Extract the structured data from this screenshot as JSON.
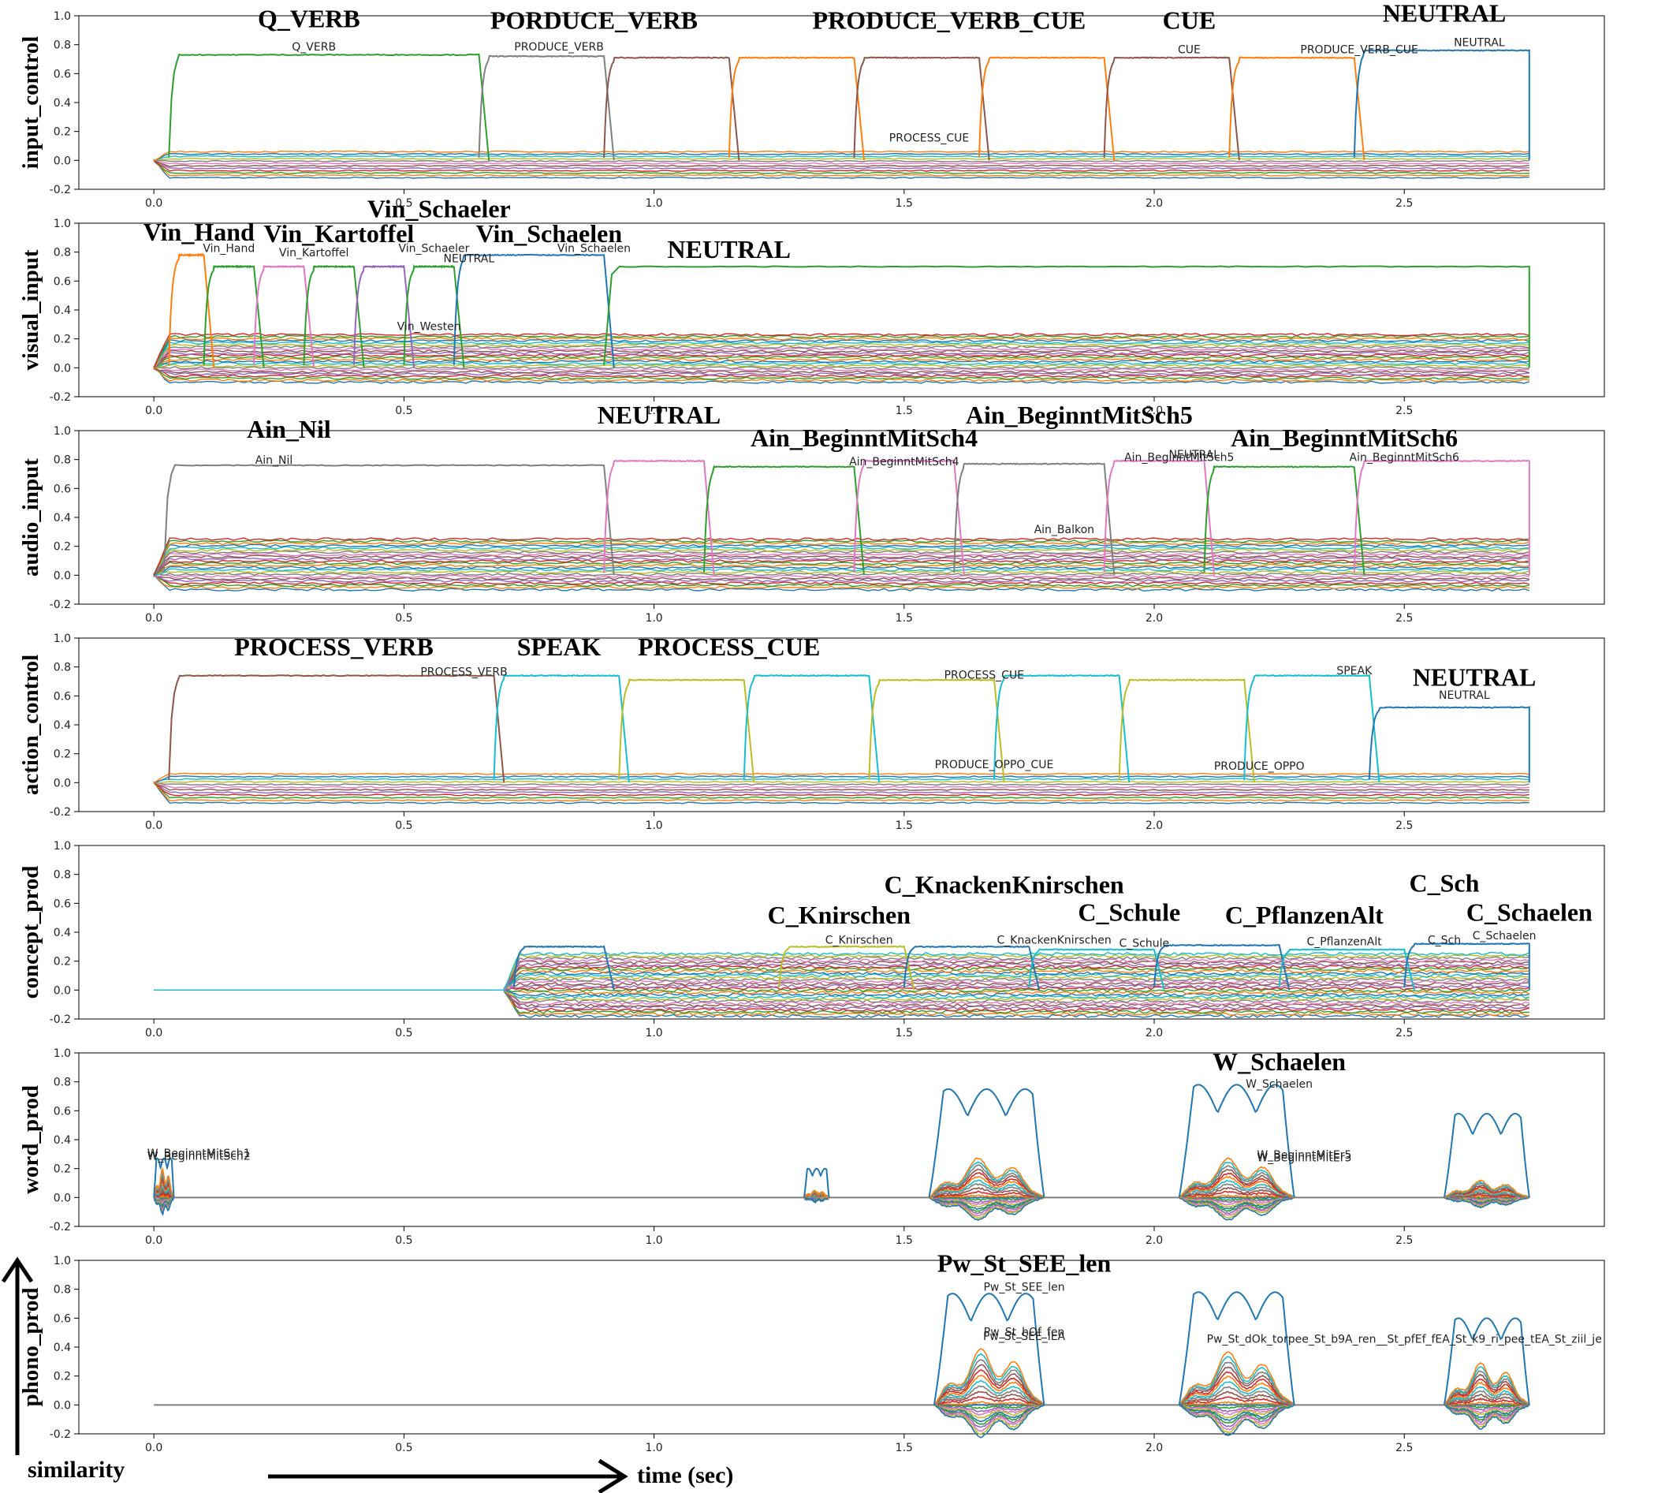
{
  "chart_data": [
    {
      "type": "line",
      "ylabel": "input_control",
      "xlim": [
        -0.15,
        2.9
      ],
      "ylim": [
        -0.2,
        1.0
      ],
      "xticks": [
        "0.0",
        "0.5",
        "1.0",
        "1.5",
        "2.0",
        "2.5"
      ],
      "yticks": [
        "-0.2",
        "0.0",
        "0.2",
        "0.4",
        "0.6",
        "0.8",
        "1.0"
      ],
      "annotations_big": [
        {
          "text": "Q_VERB",
          "x": 0.31,
          "y": 0.92
        },
        {
          "text": "PORDUCE_VERB",
          "x": 0.88,
          "y": 0.91
        },
        {
          "text": "PRODUCE_VERB_CUE",
          "x": 1.59,
          "y": 0.91
        },
        {
          "text": "CUE",
          "x": 2.07,
          "y": 0.91
        },
        {
          "text": "NEUTRAL",
          "x": 2.58,
          "y": 0.96
        }
      ],
      "annotations_small": [
        {
          "text": "Q_VERB",
          "x": 0.32,
          "y": 0.76
        },
        {
          "text": "PRODUCE_VERB",
          "x": 0.81,
          "y": 0.76
        },
        {
          "text": "CUE",
          "x": 2.07,
          "y": 0.74
        },
        {
          "text": "PRODUCE_VERB_CUE",
          "x": 2.41,
          "y": 0.74
        },
        {
          "text": "NEUTRAL",
          "x": 2.65,
          "y": 0.79
        },
        {
          "text": "PROCESS_CUE",
          "x": 1.55,
          "y": 0.13
        }
      ],
      "segments": [
        {
          "t0": 0.03,
          "t1": 0.65,
          "level": 0.73,
          "color": "#2ca02c"
        },
        {
          "t0": 0.65,
          "t1": 0.9,
          "level": 0.72,
          "color": "#7f7f7f"
        },
        {
          "t0": 0.9,
          "t1": 1.15,
          "level": 0.71,
          "color": "#8c564b"
        },
        {
          "t0": 1.15,
          "t1": 1.4,
          "level": 0.71,
          "color": "#ff7f0e"
        },
        {
          "t0": 1.4,
          "t1": 1.65,
          "level": 0.71,
          "color": "#8c564b"
        },
        {
          "t0": 1.65,
          "t1": 1.9,
          "level": 0.71,
          "color": "#ff7f0e"
        },
        {
          "t0": 1.9,
          "t1": 2.15,
          "level": 0.71,
          "color": "#8c564b"
        },
        {
          "t0": 2.15,
          "t1": 2.4,
          "level": 0.71,
          "color": "#ff7f0e"
        },
        {
          "t0": 2.4,
          "t1": 2.75,
          "level": 0.76,
          "color": "#1f77b4"
        }
      ],
      "band": {
        "lo": -0.12,
        "hi": 0.06,
        "lines": 12
      }
    },
    {
      "type": "line",
      "ylabel": "visual_input",
      "xlim": [
        -0.15,
        2.9
      ],
      "ylim": [
        -0.2,
        1.0
      ],
      "xticks": [
        "0.0",
        "0.5",
        "1.0",
        "1.5",
        "2.0",
        "2.5"
      ],
      "yticks": [
        "-0.2",
        "0.0",
        "0.2",
        "0.4",
        "0.6",
        "0.8",
        "1.0"
      ],
      "annotations_big": [
        {
          "text": "Vin_Hand",
          "x": 0.09,
          "y": 0.88
        },
        {
          "text": "Vin_Kartoffel",
          "x": 0.37,
          "y": 0.87
        },
        {
          "text": "Vin_Schaeler",
          "x": 0.57,
          "y": 1.04
        },
        {
          "text": "Vin_Schaelen",
          "x": 0.79,
          "y": 0.87
        },
        {
          "text": "NEUTRAL",
          "x": 1.15,
          "y": 0.76
        }
      ],
      "annotations_small": [
        {
          "text": "Vin_Hand",
          "x": 0.15,
          "y": 0.8
        },
        {
          "text": "Vin_Kartoffel",
          "x": 0.32,
          "y": 0.77
        },
        {
          "text": "Vin_Schaeler",
          "x": 0.56,
          "y": 0.8
        },
        {
          "text": "NEUTRAL",
          "x": 0.63,
          "y": 0.73
        },
        {
          "text": "Vin_Schaelen",
          "x": 0.88,
          "y": 0.8
        },
        {
          "text": "Vin_Westen",
          "x": 0.55,
          "y": 0.26
        }
      ],
      "segments": [
        {
          "t0": 0.03,
          "t1": 0.1,
          "level": 0.78,
          "color": "#ff7f0e"
        },
        {
          "t0": 0.1,
          "t1": 0.2,
          "level": 0.7,
          "color": "#2ca02c"
        },
        {
          "t0": 0.2,
          "t1": 0.3,
          "level": 0.7,
          "color": "#e377c2"
        },
        {
          "t0": 0.3,
          "t1": 0.4,
          "level": 0.7,
          "color": "#2ca02c"
        },
        {
          "t0": 0.4,
          "t1": 0.5,
          "level": 0.7,
          "color": "#9467bd"
        },
        {
          "t0": 0.5,
          "t1": 0.6,
          "level": 0.7,
          "color": "#2ca02c"
        },
        {
          "t0": 0.6,
          "t1": 0.9,
          "level": 0.78,
          "color": "#1f77b4"
        },
        {
          "t0": 0.9,
          "t1": 2.75,
          "level": 0.7,
          "color": "#2ca02c"
        }
      ],
      "band": {
        "lo": -0.1,
        "hi": 0.23,
        "lines": 24
      }
    },
    {
      "type": "line",
      "ylabel": "audio_input",
      "xlim": [
        -0.15,
        2.9
      ],
      "ylim": [
        -0.2,
        1.0
      ],
      "xticks": [
        "0.0",
        "0.5",
        "1.0",
        "1.5",
        "2.0",
        "2.5"
      ],
      "yticks": [
        "-0.2",
        "0.0",
        "0.2",
        "0.4",
        "0.6",
        "0.8",
        "1.0"
      ],
      "annotations_big": [
        {
          "text": "Ain_Nil",
          "x": 0.27,
          "y": 0.95
        },
        {
          "text": "NEUTRAL",
          "x": 1.01,
          "y": 1.05
        },
        {
          "text": "Ain_BeginntMitSch4",
          "x": 1.42,
          "y": 0.89
        },
        {
          "text": "Ain_BeginntMitSch5",
          "x": 1.85,
          "y": 1.05
        },
        {
          "text": "Ain_BeginntMitSch6",
          "x": 2.38,
          "y": 0.89
        }
      ],
      "annotations_small": [
        {
          "text": "Ain_Nil",
          "x": 0.24,
          "y": 0.77
        },
        {
          "text": "Ain_BeginntMitSch4",
          "x": 1.5,
          "y": 0.76
        },
        {
          "text": "Ain_BeginntMitSch5",
          "x": 2.05,
          "y": 0.79
        },
        {
          "text": "NEUTRAL",
          "x": 2.08,
          "y": 0.81
        },
        {
          "text": "Ain_BeginntMitSch6",
          "x": 2.5,
          "y": 0.79
        },
        {
          "text": "Ain_Balkon",
          "x": 1.82,
          "y": 0.29
        }
      ],
      "segments": [
        {
          "t0": 0.02,
          "t1": 0.9,
          "level": 0.76,
          "color": "#7f7f7f"
        },
        {
          "t0": 0.9,
          "t1": 1.1,
          "level": 0.79,
          "color": "#e377c2"
        },
        {
          "t0": 1.1,
          "t1": 1.4,
          "level": 0.75,
          "color": "#2ca02c"
        },
        {
          "t0": 1.4,
          "t1": 1.6,
          "level": 0.79,
          "color": "#e377c2"
        },
        {
          "t0": 1.6,
          "t1": 1.9,
          "level": 0.77,
          "color": "#7f7f7f"
        },
        {
          "t0": 1.9,
          "t1": 2.1,
          "level": 0.79,
          "color": "#e377c2"
        },
        {
          "t0": 2.1,
          "t1": 2.4,
          "level": 0.75,
          "color": "#2ca02c"
        },
        {
          "t0": 2.4,
          "t1": 2.75,
          "level": 0.79,
          "color": "#e377c2"
        }
      ],
      "band": {
        "lo": -0.1,
        "hi": 0.25,
        "lines": 24
      }
    },
    {
      "type": "line",
      "ylabel": "action_control",
      "xlim": [
        -0.15,
        2.9
      ],
      "ylim": [
        -0.2,
        1.0
      ],
      "xticks": [
        "0.0",
        "0.5",
        "1.0",
        "1.5",
        "2.0",
        "2.5"
      ],
      "yticks": [
        "-0.2",
        "0.0",
        "0.2",
        "0.4",
        "0.6",
        "0.8",
        "1.0"
      ],
      "annotations_big": [
        {
          "text": "PROCESS_VERB",
          "x": 0.36,
          "y": 0.88
        },
        {
          "text": "SPEAK",
          "x": 0.81,
          "y": 0.88
        },
        {
          "text": "PROCESS_CUE",
          "x": 1.15,
          "y": 0.88
        },
        {
          "text": "NEUTRAL",
          "x": 2.64,
          "y": 0.67
        }
      ],
      "annotations_small": [
        {
          "text": "PROCESS_VERB",
          "x": 0.62,
          "y": 0.74
        },
        {
          "text": "PROCESS_CUE",
          "x": 1.66,
          "y": 0.72
        },
        {
          "text": "SPEAK",
          "x": 2.4,
          "y": 0.75
        },
        {
          "text": "NEUTRAL",
          "x": 2.62,
          "y": 0.58
        },
        {
          "text": "PRODUCE_OPPO_CUE",
          "x": 1.68,
          "y": 0.1
        },
        {
          "text": "PRODUCE_OPPO",
          "x": 2.21,
          "y": 0.09
        }
      ],
      "segments": [
        {
          "t0": 0.03,
          "t1": 0.68,
          "level": 0.74,
          "color": "#8c564b"
        },
        {
          "t0": 0.68,
          "t1": 0.93,
          "level": 0.74,
          "color": "#17becf"
        },
        {
          "t0": 0.93,
          "t1": 1.18,
          "level": 0.71,
          "color": "#bcbd22"
        },
        {
          "t0": 1.18,
          "t1": 1.43,
          "level": 0.74,
          "color": "#17becf"
        },
        {
          "t0": 1.43,
          "t1": 1.68,
          "level": 0.71,
          "color": "#bcbd22"
        },
        {
          "t0": 1.68,
          "t1": 1.93,
          "level": 0.74,
          "color": "#17becf"
        },
        {
          "t0": 1.93,
          "t1": 2.18,
          "level": 0.71,
          "color": "#bcbd22"
        },
        {
          "t0": 2.18,
          "t1": 2.43,
          "level": 0.74,
          "color": "#17becf"
        },
        {
          "t0": 2.43,
          "t1": 2.75,
          "level": 0.52,
          "color": "#1f77b4"
        }
      ],
      "band": {
        "lo": -0.14,
        "hi": 0.06,
        "lines": 12
      }
    },
    {
      "type": "line",
      "ylabel": "concept_prod",
      "xlim": [
        -0.15,
        2.9
      ],
      "ylim": [
        -0.2,
        1.0
      ],
      "xticks": [
        "0.0",
        "0.5",
        "1.0",
        "1.5",
        "2.0",
        "2.5"
      ],
      "yticks": [
        "-0.2",
        "0.0",
        "0.2",
        "0.4",
        "0.6",
        "0.8",
        "1.0"
      ],
      "annotations_big": [
        {
          "text": "C_KnackenKnirschen",
          "x": 1.7,
          "y": 0.67
        },
        {
          "text": "C_Knirschen",
          "x": 1.37,
          "y": 0.46
        },
        {
          "text": "C_Schule",
          "x": 1.95,
          "y": 0.48
        },
        {
          "text": "C_Sch",
          "x": 2.58,
          "y": 0.68
        },
        {
          "text": "C_PflanzenAlt",
          "x": 2.3,
          "y": 0.46
        },
        {
          "text": "C_Schaelen",
          "x": 2.75,
          "y": 0.48
        }
      ],
      "annotations_small": [
        {
          "text": "C_Knirschen",
          "x": 1.41,
          "y": 0.32
        },
        {
          "text": "C_KnackenKnirschen",
          "x": 1.8,
          "y": 0.32
        },
        {
          "text": "C_Schule",
          "x": 1.98,
          "y": 0.3
        },
        {
          "text": "C_PflanzenAlt",
          "x": 2.38,
          "y": 0.31
        },
        {
          "text": "C_Sch",
          "x": 2.58,
          "y": 0.32
        },
        {
          "text": "C_Schaelen",
          "x": 2.7,
          "y": 0.35
        }
      ],
      "segments": [
        {
          "t0": 0.72,
          "t1": 0.9,
          "level": 0.3,
          "color": "#1f77b4"
        },
        {
          "t0": 1.25,
          "t1": 1.5,
          "level": 0.3,
          "color": "#bcbd22"
        },
        {
          "t0": 1.5,
          "t1": 1.75,
          "level": 0.3,
          "color": "#1f77b4"
        },
        {
          "t0": 1.75,
          "t1": 2.0,
          "level": 0.28,
          "color": "#17becf"
        },
        {
          "t0": 2.0,
          "t1": 2.25,
          "level": 0.31,
          "color": "#1f77b4"
        },
        {
          "t0": 2.25,
          "t1": 2.5,
          "level": 0.28,
          "color": "#17becf"
        },
        {
          "t0": 2.5,
          "t1": 2.75,
          "level": 0.32,
          "color": "#1f77b4"
        }
      ],
      "band": {
        "lo": -0.18,
        "hi": 0.25,
        "lines": 30,
        "start": 0.7
      }
    },
    {
      "type": "line",
      "ylabel": "word_prod",
      "xlim": [
        -0.15,
        2.9
      ],
      "ylim": [
        -0.2,
        1.0
      ],
      "xticks": [
        "0.0",
        "0.5",
        "1.0",
        "1.5",
        "2.0",
        "2.5"
      ],
      "yticks": [
        "-0.2",
        "0.0",
        "0.2",
        "0.4",
        "0.6",
        "0.8",
        "1.0"
      ],
      "annotations_big": [
        {
          "text": "W_Schaelen",
          "x": 2.25,
          "y": 0.88
        }
      ],
      "annotations_small": [
        {
          "text": "W_BeginntMitSch1",
          "x": 0.09,
          "y": 0.28
        },
        {
          "text": "W_BeginntMitSch2",
          "x": 0.09,
          "y": 0.26
        },
        {
          "text": "W_Schaelen",
          "x": 2.25,
          "y": 0.76
        },
        {
          "text": "W_BeginntMitEr5",
          "x": 2.3,
          "y": 0.27
        },
        {
          "text": "W_BeginntMitEr3",
          "x": 2.3,
          "y": 0.25
        }
      ],
      "bursts": [
        {
          "t0": 0.0,
          "t1": 0.04,
          "peak": 0.27,
          "amp": 0.2
        },
        {
          "t0": 1.3,
          "t1": 1.35,
          "peak": 0.2,
          "amp": 0.05
        },
        {
          "t0": 1.55,
          "t1": 1.78,
          "peak": 0.75,
          "amp": 0.28
        },
        {
          "t0": 2.05,
          "t1": 2.28,
          "peak": 0.78,
          "amp": 0.28
        },
        {
          "t0": 2.58,
          "t1": 2.75,
          "peak": 0.58,
          "amp": 0.12
        }
      ]
    },
    {
      "type": "line",
      "ylabel": "phono_prod",
      "xlim": [
        -0.15,
        2.9
      ],
      "ylim": [
        -0.2,
        1.0
      ],
      "xticks": [
        "0.0",
        "0.5",
        "1.0",
        "1.5",
        "2.0",
        "2.5"
      ],
      "yticks": [
        "-0.2",
        "0.0",
        "0.2",
        "0.4",
        "0.6",
        "0.8",
        "1.0"
      ],
      "annotations_big": [
        {
          "text": "Pw_St_SEE_len",
          "x": 1.74,
          "y": 0.92
        }
      ],
      "annotations_small": [
        {
          "text": "Pw_St_SEE_len",
          "x": 1.74,
          "y": 0.79
        },
        {
          "text": "Pw_St_hOf_fen",
          "x": 1.74,
          "y": 0.48
        },
        {
          "text": "Pw_St_SEE_lEA",
          "x": 1.74,
          "y": 0.45
        },
        {
          "text": "Pw_St_dOk_torpee_St_b9A_ren__St_pfEf_fEA_St_k9_ri_pee_tEA_St_ziil_je",
          "x": 2.5,
          "y": 0.43
        }
      ],
      "bursts": [
        {
          "t0": 1.56,
          "t1": 1.78,
          "peak": 0.77,
          "amp": 0.4
        },
        {
          "t0": 2.05,
          "t1": 2.28,
          "peak": 0.78,
          "amp": 0.38
        },
        {
          "t0": 2.58,
          "t1": 2.75,
          "peak": 0.6,
          "amp": 0.3
        }
      ]
    }
  ],
  "footer": {
    "ylabel": "similarity",
    "xlabel": "time (sec)"
  }
}
